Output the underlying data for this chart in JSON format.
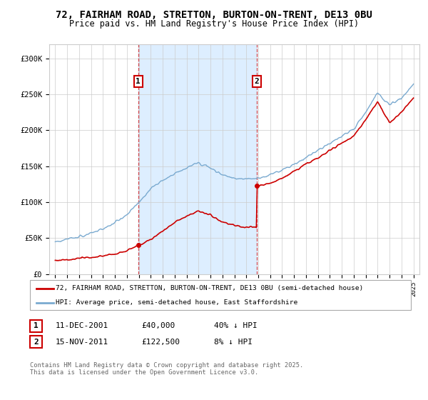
{
  "title": "72, FAIRHAM ROAD, STRETTON, BURTON-ON-TRENT, DE13 0BU",
  "subtitle": "Price paid vs. HM Land Registry's House Price Index (HPI)",
  "legend_line1": "72, FAIRHAM ROAD, STRETTON, BURTON-ON-TRENT, DE13 0BU (semi-detached house)",
  "legend_line2": "HPI: Average price, semi-detached house, East Staffordshire",
  "footer": "Contains HM Land Registry data © Crown copyright and database right 2025.\nThis data is licensed under the Open Government Licence v3.0.",
  "point1_date": "11-DEC-2001",
  "point1_price": "£40,000",
  "point1_hpi": "40% ↓ HPI",
  "point2_date": "15-NOV-2011",
  "point2_price": "£122,500",
  "point2_hpi": "8% ↓ HPI",
  "sale1_x": 2001.95,
  "sale1_y": 40000,
  "sale2_x": 2011.88,
  "sale2_y": 122500,
  "red_color": "#cc0000",
  "blue_color": "#7aaad0",
  "shade_color": "#ddeeff",
  "grid_color": "#cccccc",
  "ylim": [
    0,
    320000
  ],
  "xlim": [
    1994.5,
    2025.5
  ],
  "background_color": "#ffffff",
  "label1_box_color": "#cc0000",
  "label2_box_color": "#cc0000"
}
